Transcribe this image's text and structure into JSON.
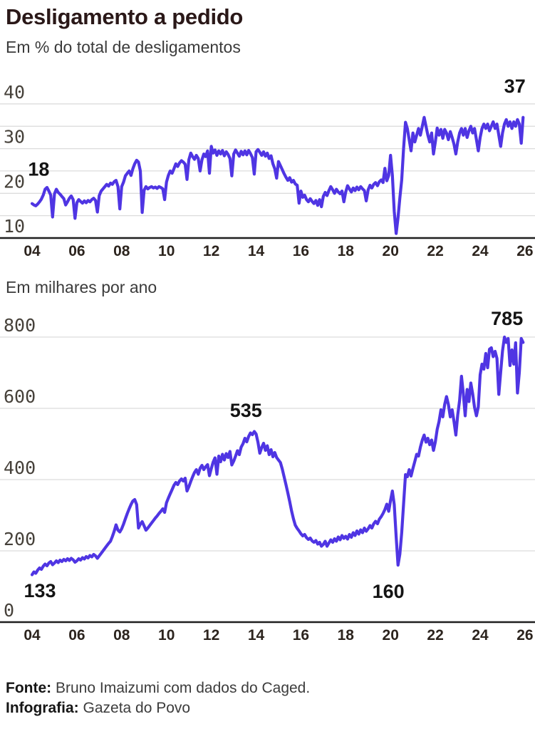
{
  "title": "Desligamento a pedido",
  "colors": {
    "line": "#4f35e3",
    "grid": "#dcdcdc",
    "axis": "#1f1f1f",
    "title_text": "#2a1818",
    "subtitle_text": "#3b3b3b",
    "y_tick_text": "#46413a",
    "x_tick_text": "#2c241e",
    "annotation_text": "#141414"
  },
  "footer": {
    "source_label": "Fonte:",
    "source_text": "Bruno Imaizumi com dados do Caged.",
    "credit_label": "Infografia:",
    "credit_text": "Gazeta do Povo"
  },
  "chart_data": [
    {
      "type": "line",
      "title": "Em % do total de desligamentos",
      "unit": "%",
      "x": {
        "start_year": 2004,
        "interval": "monthly",
        "end_year": 2025.92,
        "tick_years": [
          2004,
          2006,
          2008,
          2010,
          2012,
          2014,
          2016,
          2018,
          2020,
          2022,
          2024,
          2026
        ],
        "tick_labels": [
          "04",
          "06",
          "08",
          "10",
          "12",
          "14",
          "16",
          "18",
          "20",
          "22",
          "24",
          "26"
        ]
      },
      "y": {
        "base_value": 10,
        "gridlines": [
          15,
          20,
          25,
          30,
          35,
          40
        ],
        "labeled_ticks": [
          40,
          30,
          20,
          10
        ],
        "range": [
          10,
          45
        ],
        "grid": "on"
      },
      "first_value": 18,
      "last_value": 37,
      "values": [
        17.7,
        17.4,
        17.2,
        17.6,
        18.1,
        18.7,
        19.6,
        20.9,
        21.3,
        20.5,
        19.6,
        14.7,
        19.9,
        20.9,
        20.2,
        19.8,
        19.3,
        18.8,
        17.4,
        18.1,
        18.9,
        19.4,
        18.6,
        14.4,
        17.9,
        18.6,
        18.2,
        17.8,
        18.3,
        17.9,
        18.4,
        18.1,
        18.6,
        18.9,
        18.4,
        15.8,
        19.5,
        20.5,
        21.0,
        21.5,
        22.0,
        21.6,
        22.3,
        22.0,
        22.6,
        22.9,
        21.5,
        16.5,
        21.5,
        22.5,
        23.9,
        24.5,
        25.0,
        24.0,
        25.5,
        26.6,
        27.4,
        27.0,
        25.0,
        15.7,
        20.7,
        21.5,
        21.0,
        21.3,
        21.5,
        21.2,
        21.4,
        21.1,
        21.5,
        21.3,
        21.0,
        18.6,
        22.5,
        24.0,
        25.0,
        24.5,
        25.5,
        26.6,
        26.0,
        26.8,
        27.3,
        27.0,
        26.5,
        23.1,
        27.5,
        29.0,
        28.2,
        27.6,
        28.5,
        27.8,
        25.0,
        27.5,
        28.8,
        28.2,
        29.5,
        24.5,
        30.5,
        29.0,
        29.7,
        28.5,
        29.5,
        28.8,
        29.6,
        28.4,
        29.3,
        28.7,
        27.8,
        23.9,
        28.8,
        29.7,
        29.0,
        28.3,
        29.4,
        28.6,
        29.5,
        28.6,
        29.6,
        28.9,
        28.0,
        24.3,
        29.3,
        29.8,
        29.2,
        28.5,
        29.3,
        28.3,
        29.0,
        27.8,
        28.4,
        26.6,
        25.5,
        23.4,
        27.1,
        26.2,
        25.3,
        24.4,
        23.6,
        22.9,
        23.5,
        22.5,
        22.9,
        22.1,
        21.8,
        17.8,
        20.5,
        19.1,
        19.6,
        18.6,
        18.1,
        18.8,
        18.2,
        17.7,
        18.4,
        17.3,
        18.6,
        17.0,
        19.3,
        20.2,
        19.5,
        20.6,
        21.5,
        20.8,
        20.0,
        20.9,
        20.3,
        19.9,
        20.5,
        18.1,
        20.3,
        21.7,
        21.0,
        20.3,
        21.2,
        20.6,
        21.4,
        20.8,
        21.5,
        21.0,
        20.6,
        18.3,
        20.8,
        21.8,
        21.2,
        22.0,
        22.4,
        21.7,
        22.6,
        23.0,
        22.4,
        25.6,
        22.8,
        24.0,
        28.5,
        24.0,
        16.0,
        11.0,
        14.5,
        19.0,
        23.0,
        30.0,
        35.9,
        34.5,
        32.0,
        29.5,
        33.5,
        31.5,
        33.0,
        34.5,
        33.0,
        35.0,
        37.0,
        35.0,
        33.0,
        31.5,
        33.5,
        28.8,
        31.5,
        34.6,
        33.0,
        34.3,
        32.3,
        34.3,
        33.5,
        32.0,
        33.8,
        32.5,
        31.0,
        28.8,
        31.5,
        33.5,
        34.5,
        33.0,
        34.5,
        32.5,
        34.0,
        35.0,
        33.5,
        34.5,
        32.0,
        29.5,
        32.5,
        34.5,
        35.5,
        34.5,
        35.5,
        34.0,
        35.0,
        36.0,
        34.5,
        35.5,
        33.0,
        30.5,
        33.5,
        35.5,
        36.5,
        35.0,
        36.0,
        34.5,
        36.0,
        35.0,
        36.5,
        35.5,
        31.2,
        37.0
      ],
      "annotations": [
        {
          "text": "18",
          "year": 2004.3,
          "value": 25.4
        },
        {
          "text": "37",
          "year": 2025.55,
          "value": 44.0
        }
      ]
    },
    {
      "type": "line",
      "title": "Em milhares por ano",
      "unit": "thousands",
      "x": {
        "start_year": 2004,
        "interval": "monthly",
        "end_year": 2025.92,
        "tick_years": [
          2004,
          2006,
          2008,
          2010,
          2012,
          2014,
          2016,
          2018,
          2020,
          2022,
          2024,
          2026
        ],
        "tick_labels": [
          "04",
          "06",
          "08",
          "10",
          "12",
          "14",
          "16",
          "18",
          "20",
          "22",
          "24",
          "26"
        ]
      },
      "y": {
        "base_value": 0,
        "gridlines": [
          200,
          400,
          600,
          800
        ],
        "labeled_ticks": [
          800,
          600,
          400,
          200,
          0
        ],
        "range": [
          0,
          880
        ],
        "grid": "on"
      },
      "first_value": 133,
      "last_value": 785,
      "values": [
        133,
        141,
        137,
        146,
        152,
        148,
        157,
        163,
        158,
        166,
        170,
        161,
        166,
        172,
        167,
        174,
        170,
        176,
        172,
        178,
        173,
        179,
        175,
        168,
        172,
        178,
        174,
        181,
        177,
        184,
        180,
        187,
        183,
        190,
        186,
        179,
        186,
        193,
        200,
        207,
        214,
        221,
        227,
        240,
        255,
        273,
        258,
        253,
        262,
        275,
        290,
        305,
        318,
        330,
        340,
        344,
        330,
        264,
        275,
        282,
        270,
        258,
        264,
        271,
        278,
        285,
        292,
        298,
        305,
        311,
        318,
        308,
        335,
        348,
        360,
        372,
        384,
        392,
        386,
        396,
        402,
        396,
        404,
        368,
        380,
        395,
        408,
        420,
        428,
        415,
        432,
        440,
        428,
        436,
        442,
        411,
        431,
        449,
        461,
        415,
        466,
        450,
        471,
        455,
        473,
        462,
        479,
        441,
        452,
        466,
        481,
        470,
        491,
        501,
        516,
        506,
        521,
        531,
        526,
        535,
        528,
        505,
        474,
        490,
        502,
        482,
        495,
        470,
        484,
        464,
        476,
        462,
        455,
        448,
        430,
        408,
        386,
        362,
        338,
        312,
        290,
        272,
        263,
        256,
        248,
        242,
        246,
        237,
        232,
        236,
        228,
        224,
        229,
        219,
        224,
        213,
        218,
        227,
        213,
        222,
        231,
        224,
        234,
        227,
        239,
        231,
        243,
        235,
        241,
        233,
        246,
        238,
        251,
        243,
        256,
        247,
        259,
        251,
        264,
        255,
        262,
        271,
        264,
        276,
        283,
        276,
        289,
        296,
        305,
        316,
        331,
        311,
        341,
        368,
        330,
        240,
        160,
        191,
        251,
        331,
        414,
        408,
        428,
        410,
        431,
        451,
        471,
        466,
        491,
        511,
        525,
        505,
        516,
        498,
        511,
        482,
        506,
        541,
        563,
        596,
        576,
        611,
        633,
        611,
        576,
        596,
        563,
        525,
        581,
        623,
        690,
        641,
        579,
        653,
        619,
        671,
        641,
        603,
        579,
        604,
        694,
        724,
        710,
        754,
        714,
        766,
        770,
        745,
        760,
        740,
        639,
        701,
        761,
        800,
        785,
        796,
        720,
        764,
        724,
        784,
        643,
        701,
        796,
        785
      ],
      "annotations": [
        {
          "text": "133",
          "year": 2004.35,
          "value": 88
        },
        {
          "text": "535",
          "year": 2013.55,
          "value": 594
        },
        {
          "text": "160",
          "year": 2019.9,
          "value": 86
        },
        {
          "text": "785",
          "year": 2025.2,
          "value": 852
        }
      ]
    }
  ]
}
